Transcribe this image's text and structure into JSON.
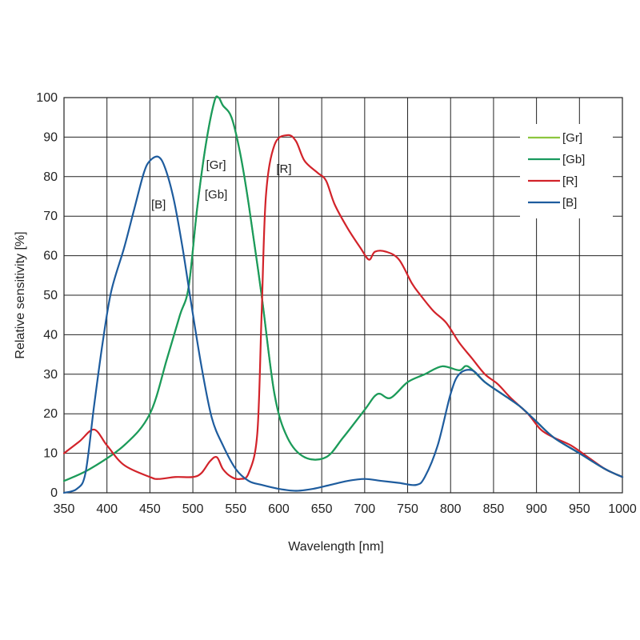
{
  "chart_data": {
    "type": "line",
    "title": "",
    "xlabel": "Wavelength [nm]",
    "ylabel": "Relative sensitivity [%]",
    "xlim": [
      350,
      1000
    ],
    "ylim": [
      0,
      100
    ],
    "xticks": [
      350,
      400,
      450,
      500,
      550,
      600,
      650,
      700,
      750,
      800,
      850,
      900,
      950,
      1000
    ],
    "yticks": [
      0,
      10,
      20,
      30,
      40,
      50,
      60,
      70,
      80,
      90,
      100
    ],
    "grid": true,
    "legend_position": "top-right",
    "series": [
      {
        "name": "[Gr]",
        "color": "#8cc63f",
        "points": [
          [
            350,
            3
          ],
          [
            380,
            6
          ],
          [
            420,
            12
          ],
          [
            450,
            20
          ],
          [
            470,
            34
          ],
          [
            485,
            45
          ],
          [
            495,
            52
          ],
          [
            505,
            72
          ],
          [
            515,
            88
          ],
          [
            525,
            99
          ],
          [
            530,
            100
          ],
          [
            535,
            98
          ],
          [
            545,
            95
          ],
          [
            555,
            86
          ],
          [
            565,
            73
          ],
          [
            580,
            50
          ],
          [
            595,
            25
          ],
          [
            610,
            14
          ],
          [
            630,
            9
          ],
          [
            655,
            9
          ],
          [
            675,
            14
          ],
          [
            700,
            21
          ],
          [
            715,
            25
          ],
          [
            730,
            24
          ],
          [
            750,
            28
          ],
          [
            770,
            30
          ],
          [
            790,
            32
          ],
          [
            810,
            31
          ],
          [
            820,
            32
          ],
          [
            840,
            28
          ],
          [
            860,
            25
          ],
          [
            880,
            22
          ],
          [
            900,
            18
          ],
          [
            920,
            14
          ],
          [
            950,
            10
          ],
          [
            980,
            6
          ],
          [
            1000,
            4
          ]
        ]
      },
      {
        "name": "[Gb]",
        "color": "#1a9a5e",
        "points": [
          [
            350,
            3
          ],
          [
            380,
            6
          ],
          [
            420,
            12
          ],
          [
            450,
            20
          ],
          [
            470,
            34
          ],
          [
            485,
            45
          ],
          [
            495,
            52
          ],
          [
            505,
            72
          ],
          [
            515,
            88
          ],
          [
            525,
            99
          ],
          [
            530,
            100
          ],
          [
            535,
            98
          ],
          [
            545,
            95
          ],
          [
            555,
            86
          ],
          [
            565,
            73
          ],
          [
            580,
            50
          ],
          [
            595,
            25
          ],
          [
            610,
            14
          ],
          [
            630,
            9
          ],
          [
            655,
            9
          ],
          [
            675,
            14
          ],
          [
            700,
            21
          ],
          [
            715,
            25
          ],
          [
            730,
            24
          ],
          [
            750,
            28
          ],
          [
            770,
            30
          ],
          [
            790,
            32
          ],
          [
            810,
            31
          ],
          [
            820,
            32
          ],
          [
            840,
            28
          ],
          [
            860,
            25
          ],
          [
            880,
            22
          ],
          [
            900,
            18
          ],
          [
            920,
            14
          ],
          [
            950,
            10
          ],
          [
            980,
            6
          ],
          [
            1000,
            4
          ]
        ]
      },
      {
        "name": "[R]",
        "color": "#d2232a",
        "points": [
          [
            350,
            10
          ],
          [
            368,
            13
          ],
          [
            385,
            16
          ],
          [
            400,
            12
          ],
          [
            420,
            7
          ],
          [
            450,
            4
          ],
          [
            460,
            3.5
          ],
          [
            480,
            4
          ],
          [
            500,
            4
          ],
          [
            510,
            5
          ],
          [
            520,
            8
          ],
          [
            528,
            9
          ],
          [
            535,
            6
          ],
          [
            545,
            4
          ],
          [
            555,
            3.5
          ],
          [
            565,
            5
          ],
          [
            575,
            15
          ],
          [
            580,
            45
          ],
          [
            585,
            75
          ],
          [
            595,
            88
          ],
          [
            610,
            90.5
          ],
          [
            620,
            89
          ],
          [
            630,
            84
          ],
          [
            645,
            81
          ],
          [
            655,
            79
          ],
          [
            665,
            73
          ],
          [
            680,
            67
          ],
          [
            695,
            62
          ],
          [
            705,
            59
          ],
          [
            712,
            61
          ],
          [
            725,
            61
          ],
          [
            740,
            59
          ],
          [
            755,
            53
          ],
          [
            765,
            50
          ],
          [
            780,
            46
          ],
          [
            795,
            43
          ],
          [
            810,
            38
          ],
          [
            825,
            34
          ],
          [
            840,
            30
          ],
          [
            855,
            27.5
          ],
          [
            870,
            24
          ],
          [
            890,
            20
          ],
          [
            905,
            16
          ],
          [
            920,
            14
          ],
          [
            940,
            12
          ],
          [
            960,
            9
          ],
          [
            980,
            6
          ],
          [
            1000,
            4
          ]
        ]
      },
      {
        "name": "[B]",
        "color": "#1e5c9e",
        "points": [
          [
            350,
            0
          ],
          [
            365,
            1
          ],
          [
            375,
            5
          ],
          [
            385,
            22
          ],
          [
            395,
            38
          ],
          [
            405,
            51
          ],
          [
            420,
            62
          ],
          [
            432,
            72
          ],
          [
            443,
            81
          ],
          [
            450,
            84
          ],
          [
            460,
            85
          ],
          [
            468,
            82
          ],
          [
            478,
            74
          ],
          [
            488,
            62
          ],
          [
            498,
            48
          ],
          [
            510,
            32
          ],
          [
            522,
            19
          ],
          [
            535,
            12
          ],
          [
            550,
            6
          ],
          [
            565,
            3
          ],
          [
            580,
            2
          ],
          [
            600,
            1
          ],
          [
            620,
            0.5
          ],
          [
            640,
            1
          ],
          [
            660,
            2
          ],
          [
            680,
            3
          ],
          [
            700,
            3.5
          ],
          [
            720,
            3
          ],
          [
            740,
            2.5
          ],
          [
            760,
            2
          ],
          [
            770,
            4
          ],
          [
            785,
            12
          ],
          [
            800,
            25
          ],
          [
            810,
            30
          ],
          [
            825,
            31
          ],
          [
            840,
            28
          ],
          [
            860,
            25
          ],
          [
            880,
            22
          ],
          [
            900,
            18
          ],
          [
            920,
            14
          ],
          [
            950,
            10
          ],
          [
            980,
            6
          ],
          [
            1000,
            4
          ]
        ]
      }
    ],
    "annotations": [
      {
        "text": "[B]",
        "x": 460,
        "y": 73
      },
      {
        "text": "[Gr]",
        "x": 527,
        "y": 83
      },
      {
        "text": "[Gb]",
        "x": 527,
        "y": 75.5
      },
      {
        "text": "[R]",
        "x": 606,
        "y": 82
      }
    ]
  }
}
